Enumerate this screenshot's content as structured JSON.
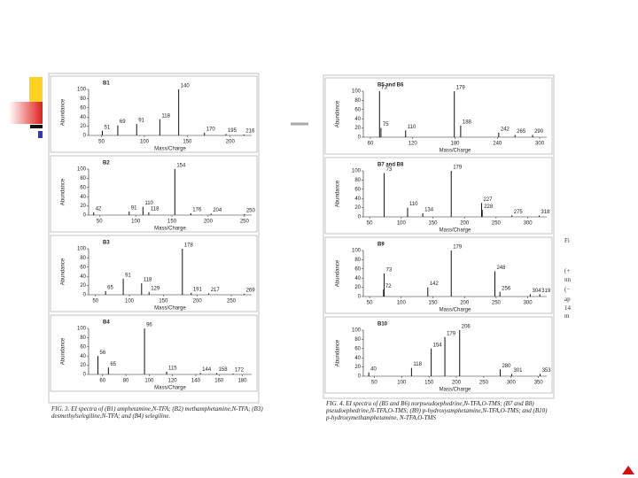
{
  "chart_data": [
    {
      "type": "spectrum",
      "title": "B1",
      "xlabel": "Mass/Charge",
      "ylabel": "Abundance",
      "x": [
        51,
        69,
        91,
        118,
        140,
        170,
        195,
        216
      ],
      "values": [
        10,
        22,
        25,
        35,
        100,
        6,
        3,
        2
      ],
      "xlim": [
        35,
        225
      ],
      "ylim": [
        0,
        100
      ],
      "xticks": [
        50,
        100,
        150,
        200
      ],
      "yticks": [
        0,
        20,
        40,
        60,
        80,
        100
      ],
      "color": "#111111"
    },
    {
      "type": "spectrum",
      "title": "B2",
      "xlabel": "Mass/Charge",
      "ylabel": "Abundance",
      "x": [
        42,
        91,
        110,
        118,
        154,
        176,
        204,
        250
      ],
      "values": [
        6,
        8,
        18,
        6,
        100,
        4,
        3,
        2
      ],
      "xlim": [
        35,
        260
      ],
      "ylim": [
        0,
        100
      ],
      "xticks": [
        50,
        100,
        150,
        200,
        250
      ],
      "yticks": [
        0,
        20,
        40,
        60,
        80,
        100
      ],
      "color": "#111111"
    },
    {
      "type": "spectrum",
      "title": "B3",
      "xlabel": "Mass/Charge",
      "ylabel": "Abundance",
      "x": [
        65,
        91,
        118,
        129,
        178,
        191,
        217,
        269
      ],
      "values": [
        8,
        35,
        25,
        6,
        100,
        4,
        3,
        2
      ],
      "xlim": [
        40,
        280
      ],
      "ylim": [
        0,
        100
      ],
      "xticks": [
        50,
        100,
        150,
        200,
        250
      ],
      "yticks": [
        0,
        20,
        40,
        60,
        80,
        100
      ],
      "color": "#111111"
    },
    {
      "type": "spectrum",
      "title": "B4",
      "xlabel": "Mass/Charge",
      "ylabel": "Abundance",
      "x": [
        56,
        65,
        96,
        115,
        144,
        158,
        172
      ],
      "values": [
        40,
        15,
        100,
        6,
        3,
        3,
        2
      ],
      "xlim": [
        48,
        188
      ],
      "ylim": [
        0,
        100
      ],
      "xticks": [
        60,
        80,
        100,
        120,
        140,
        160,
        180
      ],
      "yticks": [
        0,
        20,
        40,
        60,
        80,
        100
      ],
      "color": "#111111"
    },
    {
      "type": "spectrum",
      "title": "B5 and B6",
      "xlabel": "Mass/Charge",
      "ylabel": "Abundance",
      "x": [
        73,
        75,
        110,
        179,
        188,
        242,
        265,
        290
      ],
      "values": [
        100,
        20,
        15,
        100,
        25,
        10,
        5,
        5
      ],
      "xlim": [
        50,
        310
      ],
      "ylim": [
        0,
        100
      ],
      "xticks": [
        60,
        120,
        180,
        240,
        300
      ],
      "yticks": [
        0,
        20,
        40,
        60,
        80,
        100
      ],
      "color": "#111111"
    },
    {
      "type": "spectrum",
      "title": "B7 and B8",
      "xlabel": "Mass/Charge",
      "ylabel": "Abundance",
      "x": [
        73,
        110,
        134,
        179,
        227,
        228,
        275,
        318
      ],
      "values": [
        95,
        20,
        8,
        100,
        30,
        15,
        3,
        3
      ],
      "xlim": [
        40,
        330
      ],
      "ylim": [
        0,
        100
      ],
      "xticks": [
        50,
        100,
        150,
        200,
        250,
        300
      ],
      "yticks": [
        0,
        20,
        40,
        60,
        80,
        100
      ],
      "color": "#111111"
    },
    {
      "type": "spectrum",
      "title": "B9",
      "xlabel": "Mass/Charge",
      "ylabel": "Abundance",
      "x": [
        73,
        72,
        142,
        179,
        248,
        256,
        304,
        319
      ],
      "values": [
        50,
        15,
        20,
        100,
        55,
        10,
        5,
        5
      ],
      "xlim": [
        40,
        330
      ],
      "ylim": [
        0,
        100
      ],
      "xticks": [
        50,
        100,
        150,
        200,
        250,
        300
      ],
      "yticks": [
        0,
        20,
        40,
        60,
        80,
        100
      ],
      "color": "#111111"
    },
    {
      "type": "spectrum",
      "title": "B10",
      "xlabel": "Mass/Charge",
      "ylabel": "Abundance",
      "x": [
        40,
        118,
        154,
        179,
        206,
        280,
        301,
        353
      ],
      "values": [
        8,
        18,
        60,
        85,
        100,
        15,
        5,
        5
      ],
      "xlim": [
        30,
        365
      ],
      "ylim": [
        0,
        100
      ],
      "xticks": [
        50,
        100,
        150,
        200,
        250,
        300,
        350
      ],
      "yticks": [
        0,
        20,
        40,
        60,
        80,
        100
      ],
      "color": "#111111"
    }
  ],
  "figures": [
    {
      "caption": "FIG. 3. EI spectra of (B1) amphetamine,N-TFA; (B2) methamphetamine,N-TFA; (B3) desmethylselegiline,N-TFA; and (B4) selegiline."
    },
    {
      "caption": "FIG. 4. EI spectra of (B5 and B6) norpseudoephedrine,N-TFA,O-TMS; (B7 and B8) pseudoephedrine,N-TFA,O-TMS; (B9) p-hydroxyamphetamine,N-TFA,O-TMS; and (B10) p-hydroxymethamphetamine, N-TFA,O-TMS"
    }
  ],
  "slide": {
    "side_text": [
      "Fi",
      "(+",
      "nn",
      "(−",
      "ap",
      "14",
      "m"
    ]
  }
}
